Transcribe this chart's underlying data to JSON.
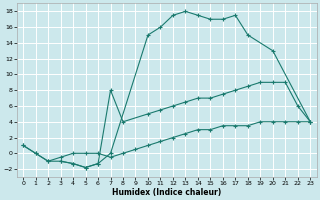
{
  "xlabel": "Humidex (Indice chaleur)",
  "bg_color": "#cce8ec",
  "grid_color": "#ffffff",
  "line_color": "#1a7a6e",
  "xlim": [
    -0.5,
    23.5
  ],
  "ylim": [
    -3,
    19
  ],
  "xticks": [
    0,
    1,
    2,
    3,
    4,
    5,
    6,
    7,
    8,
    9,
    10,
    11,
    12,
    13,
    14,
    15,
    16,
    17,
    18,
    19,
    20,
    21,
    22,
    23
  ],
  "yticks": [
    -2,
    0,
    2,
    4,
    6,
    8,
    10,
    12,
    14,
    16,
    18
  ],
  "series": [
    {
      "x": [
        0,
        1,
        2,
        3,
        4,
        5,
        6,
        7,
        10,
        11,
        12,
        13,
        14,
        15,
        16,
        17,
        18,
        20,
        23
      ],
      "y": [
        1,
        0,
        -1,
        -1,
        -1.3,
        -1.8,
        -1.3,
        0,
        15,
        16,
        17.5,
        18,
        17.5,
        17,
        17,
        17.5,
        15,
        13,
        4
      ]
    },
    {
      "x": [
        3,
        4,
        5,
        6,
        7,
        8,
        10,
        11,
        12,
        13,
        14,
        15,
        16,
        17,
        18,
        19,
        20,
        21,
        22,
        23
      ],
      "y": [
        -1,
        -1.3,
        -1.8,
        -1.3,
        8,
        4,
        5,
        5.5,
        6,
        6.5,
        7,
        7,
        7.5,
        8,
        8.5,
        9,
        9,
        9,
        6,
        4
      ]
    },
    {
      "x": [
        0,
        1,
        2,
        3,
        4,
        5,
        6,
        7,
        8,
        9,
        10,
        11,
        12,
        13,
        14,
        15,
        16,
        17,
        18,
        19,
        20,
        21,
        22,
        23
      ],
      "y": [
        1,
        0,
        -1,
        -0.5,
        0,
        0,
        0,
        -0.5,
        0,
        0.5,
        1,
        1.5,
        2,
        2.5,
        3,
        3,
        3.5,
        3.5,
        3.5,
        4,
        4,
        4,
        4,
        4
      ]
    }
  ]
}
